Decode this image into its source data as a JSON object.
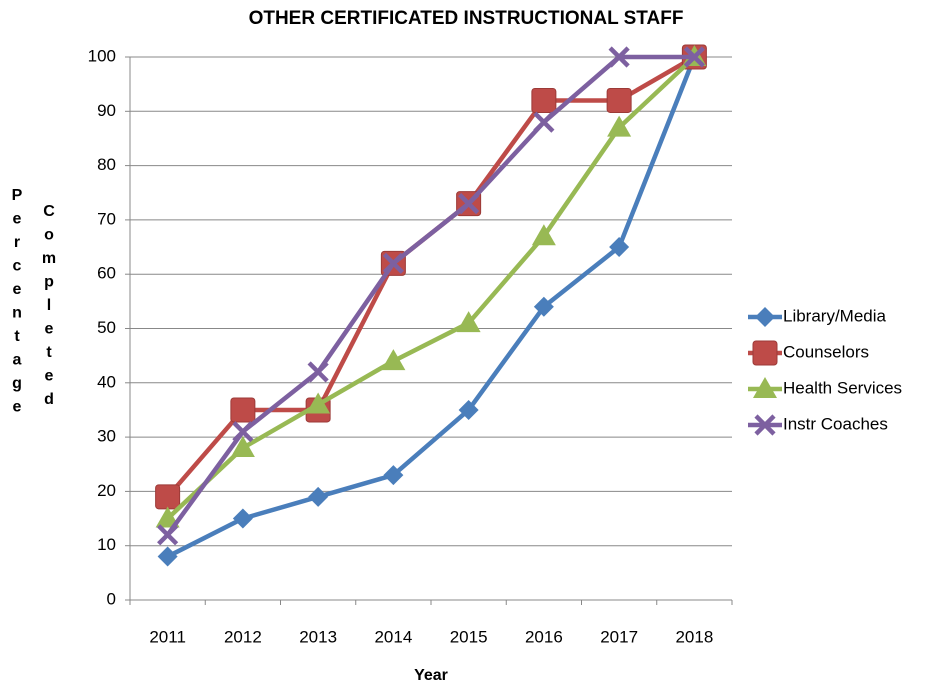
{
  "chart_data": {
    "type": "line",
    "title": "OTHER CERTIFICATED INSTRUCTIONAL STAFF",
    "x_label": "Year",
    "y_label": [
      "Percentage",
      "Completed"
    ],
    "categories": [
      "2011",
      "2012",
      "2013",
      "2014",
      "2015",
      "2016",
      "2017",
      "2018"
    ],
    "series": [
      {
        "name": "Library/Media",
        "color": "#4a7ebb",
        "marker": "diamond",
        "values": [
          8,
          15,
          19,
          23,
          35,
          54,
          65,
          100
        ]
      },
      {
        "name": "Counselors",
        "color": "#be4b48",
        "marker": "square",
        "values": [
          19,
          35,
          35,
          62,
          73,
          92,
          92,
          100
        ]
      },
      {
        "name": "Health Services",
        "color": "#98b954",
        "marker": "triangle",
        "values": [
          15,
          28,
          36,
          44,
          51,
          67,
          87,
          100
        ]
      },
      {
        "name": "Instr Coaches",
        "color": "#7d60a0",
        "marker": "x",
        "values": [
          12,
          31,
          42,
          62,
          73,
          88,
          100,
          100
        ]
      }
    ],
    "ylim": [
      0,
      100
    ],
    "yticks": [
      0,
      10,
      20,
      30,
      40,
      50,
      60,
      70,
      80,
      90,
      100
    ],
    "grid": true,
    "legend": "right"
  }
}
